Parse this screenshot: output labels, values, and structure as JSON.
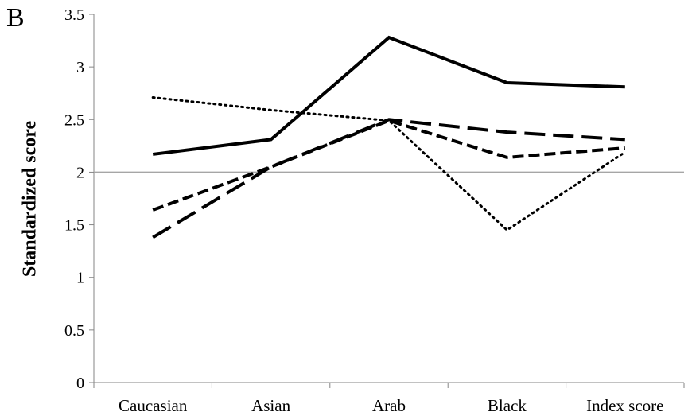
{
  "panel_label": "B",
  "chart_data": {
    "type": "line",
    "title": "",
    "xlabel": "",
    "ylabel": "Standardized score",
    "categories": [
      "Caucasian",
      "Asian",
      "Arab",
      "Black",
      "Index score"
    ],
    "ylim": [
      0,
      3.5
    ],
    "yticks": [
      "0",
      "0.5",
      "1",
      "1.5",
      "2",
      "2.5",
      "3",
      "3.5"
    ],
    "reference_line": 2,
    "grid": false,
    "series": [
      {
        "values": [
          2.17,
          2.31,
          3.28,
          2.85,
          2.81
        ],
        "style": "solid",
        "color": "#000000"
      },
      {
        "values": [
          2.71,
          2.59,
          2.49,
          1.45,
          2.19
        ],
        "style": "dotted",
        "color": "#000000"
      },
      {
        "values": [
          1.64,
          2.05,
          2.49,
          2.14,
          2.23
        ],
        "style": "dashed",
        "color": "#000000"
      },
      {
        "values": [
          1.38,
          2.05,
          2.5,
          2.38,
          2.31
        ],
        "style": "long-dashed",
        "color": "#000000"
      }
    ],
    "reference_line_color": "#a6a6a6"
  }
}
